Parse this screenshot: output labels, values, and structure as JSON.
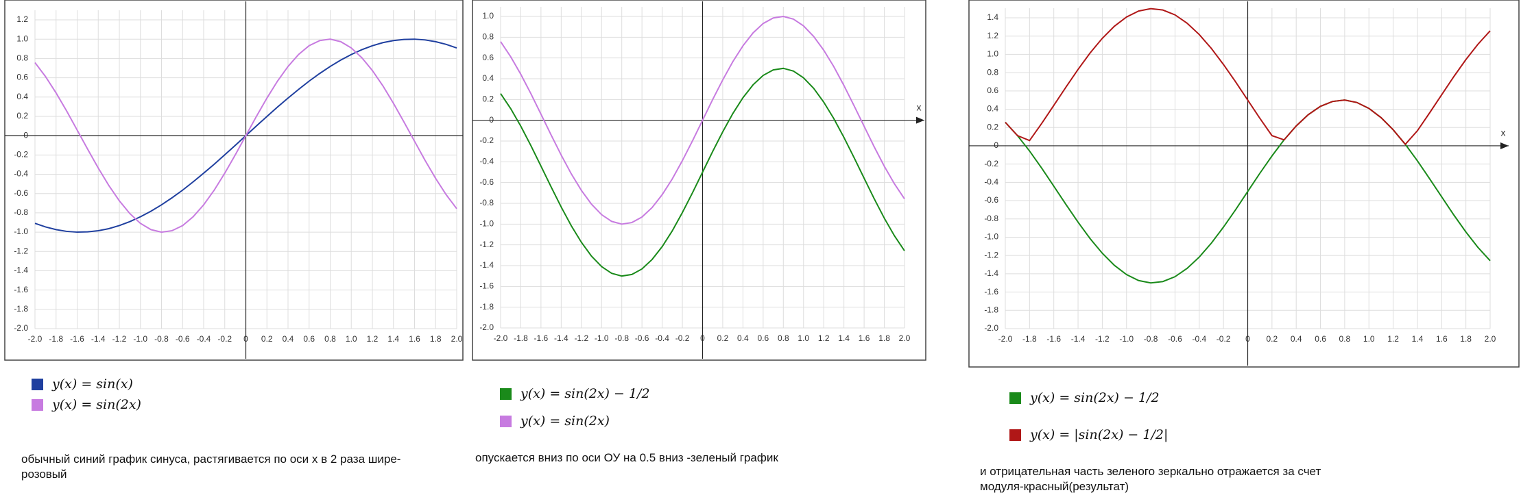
{
  "chart_data": [
    {
      "type": "line",
      "x": [
        -2,
        -1.9,
        -1.8,
        -1.7,
        -1.6,
        -1.5,
        -1.4,
        -1.3,
        -1.2,
        -1.1,
        -1,
        -0.9,
        -0.8,
        -0.7,
        -0.6,
        -0.5,
        -0.4,
        -0.3,
        -0.2,
        -0.1,
        0,
        0.1,
        0.2,
        0.3,
        0.4,
        0.5,
        0.6,
        0.7,
        0.8,
        0.9,
        1,
        1.1,
        1.2,
        1.3,
        1.4,
        1.5,
        1.6,
        1.7,
        1.8,
        1.9,
        2
      ],
      "series": [
        {
          "name": "y(x) = sin(x)",
          "color": "#1f3f9f",
          "values": [
            -0.909,
            -0.946,
            -0.974,
            -0.992,
            -1,
            -0.997,
            -0.985,
            -0.964,
            -0.932,
            -0.891,
            -0.841,
            -0.783,
            -0.717,
            -0.644,
            -0.565,
            -0.479,
            -0.389,
            -0.296,
            -0.199,
            -0.1,
            0,
            0.1,
            0.199,
            0.296,
            0.389,
            0.479,
            0.565,
            0.644,
            0.717,
            0.783,
            0.841,
            0.891,
            0.932,
            0.964,
            0.985,
            0.997,
            1,
            0.992,
            0.974,
            0.946,
            0.909
          ]
        },
        {
          "name": "y(x) = sin(2x)",
          "color": "#c77be0",
          "values": [
            0.757,
            0.612,
            0.443,
            0.256,
            0.058,
            -0.141,
            -0.335,
            -0.516,
            -0.675,
            -0.808,
            -0.909,
            -0.974,
            -1,
            -0.985,
            -0.932,
            -0.841,
            -0.717,
            -0.565,
            -0.389,
            -0.199,
            0,
            0.199,
            0.389,
            0.565,
            0.717,
            0.841,
            0.932,
            0.985,
            1,
            0.974,
            0.909,
            0.808,
            0.675,
            0.516,
            0.335,
            0.141,
            -0.058,
            -0.256,
            -0.443,
            -0.612,
            -0.757
          ]
        }
      ],
      "xlim": [
        -2,
        2
      ],
      "ylim": [
        -2,
        1.2
      ],
      "xticks": [
        {
          "value": -2,
          "label": "-2.0"
        },
        -1.8,
        -1.6,
        -1.4,
        -1.2,
        {
          "value": -1,
          "label": "-1.0"
        },
        -0.8,
        -0.6,
        -0.4,
        -0.2,
        0,
        0.2,
        0.4,
        0.6,
        0.8,
        {
          "value": 1,
          "label": "1.0"
        },
        1.2,
        1.4,
        1.6,
        1.8,
        {
          "value": 2,
          "label": "2.0"
        }
      ],
      "yticks": [
        {
          "value": -2,
          "label": "-2.0"
        },
        -1.8,
        -1.6,
        -1.4,
        -1.2,
        {
          "value": -1,
          "label": "-1.0"
        },
        -0.8,
        -0.6,
        -0.4,
        -0.2,
        0,
        0.2,
        0.4,
        0.6,
        0.8,
        {
          "value": 1,
          "label": "1.0"
        },
        1.2
      ],
      "grid": true,
      "caption": "обычный синий график синуса, растягивается по оси x в 2 раза шире-розовый"
    },
    {
      "type": "line",
      "x": [
        -2,
        -1.9,
        -1.8,
        -1.7,
        -1.6,
        -1.5,
        -1.4,
        -1.3,
        -1.2,
        -1.1,
        -1,
        -0.9,
        -0.8,
        -0.7,
        -0.6,
        -0.5,
        -0.4,
        -0.3,
        -0.2,
        -0.1,
        0,
        0.1,
        0.2,
        0.3,
        0.4,
        0.5,
        0.6,
        0.7,
        0.8,
        0.9,
        1,
        1.1,
        1.2,
        1.3,
        1.4,
        1.5,
        1.6,
        1.7,
        1.8,
        1.9,
        2
      ],
      "series": [
        {
          "name": "y(x) = sin(2x) − 1/2",
          "color": "#1a8a1a",
          "values": [
            0.257,
            0.112,
            -0.057,
            -0.244,
            -0.442,
            -0.641,
            -0.835,
            -1.016,
            -1.175,
            -1.308,
            -1.409,
            -1.474,
            -1.5,
            -1.485,
            -1.432,
            -1.341,
            -1.217,
            -1.065,
            -0.889,
            -0.699,
            -0.5,
            -0.301,
            -0.111,
            0.065,
            0.217,
            0.341,
            0.432,
            0.485,
            0.5,
            0.474,
            0.409,
            0.308,
            0.175,
            0.016,
            -0.165,
            -0.359,
            -0.558,
            -0.756,
            -0.943,
            -1.112,
            -1.257
          ]
        },
        {
          "name": "y(x) = sin(2x)",
          "color": "#c77be0",
          "values": [
            0.757,
            0.612,
            0.443,
            0.256,
            0.058,
            -0.141,
            -0.335,
            -0.516,
            -0.675,
            -0.808,
            -0.909,
            -0.974,
            -1,
            -0.985,
            -0.932,
            -0.841,
            -0.717,
            -0.565,
            -0.389,
            -0.199,
            0,
            0.199,
            0.389,
            0.565,
            0.717,
            0.841,
            0.932,
            0.985,
            1,
            0.974,
            0.909,
            0.808,
            0.675,
            0.516,
            0.335,
            0.141,
            -0.058,
            -0.256,
            -0.443,
            -0.612,
            -0.757
          ]
        }
      ],
      "xlabel": "x",
      "xlim": [
        -2,
        2
      ],
      "ylim": [
        -2,
        1
      ],
      "xticks": [
        {
          "value": -2,
          "label": "-2.0"
        },
        -1.8,
        -1.6,
        -1.4,
        -1.2,
        {
          "value": -1,
          "label": "-1.0"
        },
        -0.8,
        -0.6,
        -0.4,
        -0.2,
        0,
        0.2,
        0.4,
        0.6,
        0.8,
        {
          "value": 1,
          "label": "1.0"
        },
        1.2,
        1.4,
        1.6,
        1.8,
        {
          "value": 2,
          "label": "2.0"
        }
      ],
      "yticks": [
        {
          "value": -2,
          "label": "-2.0"
        },
        -1.8,
        -1.6,
        -1.4,
        -1.2,
        {
          "value": -1,
          "label": "-1.0"
        },
        -0.8,
        -0.6,
        -0.4,
        -0.2,
        0,
        0.2,
        0.4,
        0.6,
        0.8,
        {
          "value": 1,
          "label": "1.0"
        }
      ],
      "grid": true,
      "caption": "опускается вниз по оси ОУ на 0.5 вниз  -зеленый график"
    },
    {
      "type": "line",
      "x": [
        -2,
        -1.9,
        -1.8,
        -1.7,
        -1.6,
        -1.5,
        -1.4,
        -1.3,
        -1.2,
        -1.1,
        -1,
        -0.9,
        -0.8,
        -0.7,
        -0.6,
        -0.5,
        -0.4,
        -0.3,
        -0.2,
        -0.1,
        0,
        0.1,
        0.2,
        0.3,
        0.4,
        0.5,
        0.6,
        0.7,
        0.8,
        0.9,
        1,
        1.1,
        1.2,
        1.3,
        1.4,
        1.5,
        1.6,
        1.7,
        1.8,
        1.9,
        2
      ],
      "series": [
        {
          "name": "y(x) = sin(2x) − 1/2",
          "color": "#1a8a1a",
          "values": [
            0.257,
            0.112,
            -0.057,
            -0.244,
            -0.442,
            -0.641,
            -0.835,
            -1.016,
            -1.175,
            -1.308,
            -1.409,
            -1.474,
            -1.5,
            -1.485,
            -1.432,
            -1.341,
            -1.217,
            -1.065,
            -0.889,
            -0.699,
            -0.5,
            -0.301,
            -0.111,
            0.065,
            0.217,
            0.341,
            0.432,
            0.485,
            0.5,
            0.474,
            0.409,
            0.308,
            0.175,
            0.016,
            -0.165,
            -0.359,
            -0.558,
            -0.756,
            -0.943,
            -1.112,
            -1.257
          ]
        },
        {
          "name": "y(x) = |sin(2x) − 1/2|",
          "color": "#b01717",
          "values": [
            0.257,
            0.112,
            0.057,
            0.244,
            0.442,
            0.641,
            0.835,
            1.016,
            1.175,
            1.308,
            1.409,
            1.474,
            1.5,
            1.485,
            1.432,
            1.341,
            1.217,
            1.065,
            0.889,
            0.699,
            0.5,
            0.301,
            0.111,
            0.065,
            0.217,
            0.341,
            0.432,
            0.485,
            0.5,
            0.474,
            0.409,
            0.308,
            0.175,
            0.016,
            0.165,
            0.359,
            0.558,
            0.756,
            0.943,
            1.112,
            1.257
          ]
        }
      ],
      "xlabel": "x",
      "xlim": [
        -2,
        2
      ],
      "ylim": [
        -2,
        1.4
      ],
      "xticks": [
        {
          "value": -2,
          "label": "-2.0"
        },
        -1.8,
        -1.6,
        -1.4,
        -1.2,
        {
          "value": -1,
          "label": "-1.0"
        },
        -0.8,
        -0.6,
        -0.4,
        -0.2,
        0,
        0.2,
        0.4,
        0.6,
        0.8,
        {
          "value": 1,
          "label": "1.0"
        },
        1.2,
        1.4,
        1.6,
        1.8,
        {
          "value": 2,
          "label": "2.0"
        }
      ],
      "yticks": [
        {
          "value": -2,
          "label": "-2.0"
        },
        -1.8,
        -1.6,
        -1.4,
        -1.2,
        {
          "value": -1,
          "label": "-1.0"
        },
        -0.8,
        -0.6,
        -0.4,
        -0.2,
        0,
        0.2,
        0.4,
        0.6,
        0.8,
        {
          "value": 1,
          "label": "1.0"
        },
        1.2,
        1.4
      ],
      "grid": true,
      "caption": "и отрицательная часть зеленого зеркально отражается за счет модуля-красный(результат)"
    }
  ]
}
